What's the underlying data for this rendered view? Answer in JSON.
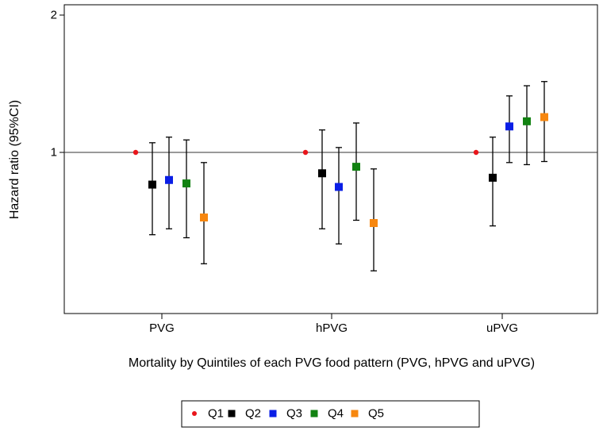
{
  "chart_data": {
    "type": "scatter",
    "xlabel": "Mortality by Quintiles of each PVG food pattern (PVG, hPVG and uPVG)",
    "ylabel": "Hazard ratio (95%CI)",
    "ylim": [
      0.5,
      2.1
    ],
    "y_scale": "log",
    "y_ticks": [
      "1",
      "2"
    ],
    "reference_line": 1,
    "grid": false,
    "legend_position": "bottom",
    "categories": [
      "PVG",
      "hPVG",
      "uPVG"
    ],
    "series": [
      {
        "name": "Q1",
        "color": "#e8151b",
        "marker": "dot",
        "values": [
          1.0,
          1.0,
          1.0
        ],
        "lower": [
          null,
          null,
          null
        ],
        "upper": [
          null,
          null,
          null
        ]
      },
      {
        "name": "Q2",
        "color": "#000000",
        "marker": "square",
        "values": [
          0.85,
          0.9,
          0.88
        ],
        "lower": [
          0.66,
          0.68,
          0.69
        ],
        "upper": [
          1.05,
          1.12,
          1.08
        ]
      },
      {
        "name": "Q3",
        "color": "#0a1ee6",
        "marker": "square",
        "values": [
          0.87,
          0.84,
          1.14
        ],
        "lower": [
          0.68,
          0.63,
          0.95
        ],
        "upper": [
          1.08,
          1.025,
          1.33
        ]
      },
      {
        "name": "Q4",
        "color": "#128212",
        "marker": "square",
        "values": [
          0.855,
          0.93,
          1.17
        ],
        "lower": [
          0.65,
          0.71,
          0.94
        ],
        "upper": [
          1.065,
          1.16,
          1.4
        ]
      },
      {
        "name": "Q5",
        "color": "#f7870f",
        "marker": "square",
        "values": [
          0.72,
          0.7,
          1.195
        ],
        "lower": [
          0.57,
          0.55,
          0.955
        ],
        "upper": [
          0.95,
          0.92,
          1.43
        ]
      }
    ]
  }
}
